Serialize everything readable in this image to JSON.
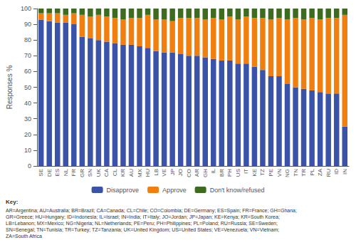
{
  "chart_data": {
    "type": "bar",
    "stacked": true,
    "categories": [
      "SE",
      "DE",
      "ES",
      "NL",
      "FR",
      "GR",
      "SN",
      "UK",
      "CA",
      "CL",
      "KR",
      "AU",
      "MX",
      "HU",
      "LB",
      "VE",
      "JP",
      "JO",
      "CO",
      "AR",
      "GH",
      "IL",
      "BR",
      "PH",
      "US",
      "IT",
      "KE",
      "TZ",
      "PE",
      "VN",
      "NG",
      "TN",
      "TR",
      "PL",
      "ZA",
      "RU",
      "ID",
      "IN"
    ],
    "series": [
      {
        "name": "Disapprove",
        "color": "#3a52a7",
        "values": [
          93,
          92,
          91,
          91,
          90,
          82,
          81,
          80,
          79,
          78,
          77,
          77,
          76,
          75,
          73,
          72,
          72,
          71,
          70,
          70,
          69,
          68,
          67,
          67,
          65,
          65,
          63,
          61,
          57,
          57,
          52,
          50,
          49,
          48,
          47,
          46,
          46,
          25
        ]
      },
      {
        "name": "Approve",
        "color": "#f07f10",
        "values": [
          4,
          5,
          6,
          5,
          7,
          14,
          14,
          16,
          16,
          16,
          16,
          17,
          18,
          21,
          20,
          21,
          20,
          23,
          24,
          24,
          24,
          26,
          26,
          28,
          28,
          30,
          31,
          33,
          36,
          37,
          41,
          44,
          44,
          46,
          46,
          48,
          48,
          71
        ]
      },
      {
        "name": "Don't know/refused",
        "color": "#3d6b20",
        "values": [
          3,
          3,
          3,
          4,
          3,
          4,
          5,
          4,
          5,
          6,
          7,
          6,
          6,
          4,
          7,
          7,
          8,
          6,
          6,
          6,
          7,
          6,
          7,
          5,
          7,
          5,
          6,
          6,
          7,
          6,
          7,
          6,
          7,
          6,
          7,
          6,
          6,
          4
        ]
      }
    ],
    "ylabel": "Responses %",
    "ylim": [
      0,
      100
    ],
    "yticks": [
      0,
      10,
      20,
      30,
      40,
      50,
      60,
      70,
      80,
      90,
      100
    ],
    "grid": false,
    "legend": "bottom",
    "annotations": [
      "Key:",
      "AR=Argentina; AU=Australia; BR=Brazil; CA=Canada; CL=Chile; CO=Colombia; DE=Germany; ES=Spain; FR=France; GH=Ghana;",
      "GR=Greece; HU=Hungary; ID=Indonesia; IL=Israel; IN=India; IT=Italy; JO=Jordan; JP=Japan; KE=Kenya; KR=South Korea;",
      "LB=Lebanon; MX=Mexico; NG=Nigeria; NL=Netherlands; PE=Peru; PH=Philippines; PL=Poland; RU=Russia; SE=Sweden;",
      "SN=Senegal; TN=Tunisia; TR=Turkey; TZ=Tanzania; UK=United Kingdom; US=United States; VE=Venezuela; VN=Vietnam;",
      "ZA=South Africa"
    ]
  }
}
